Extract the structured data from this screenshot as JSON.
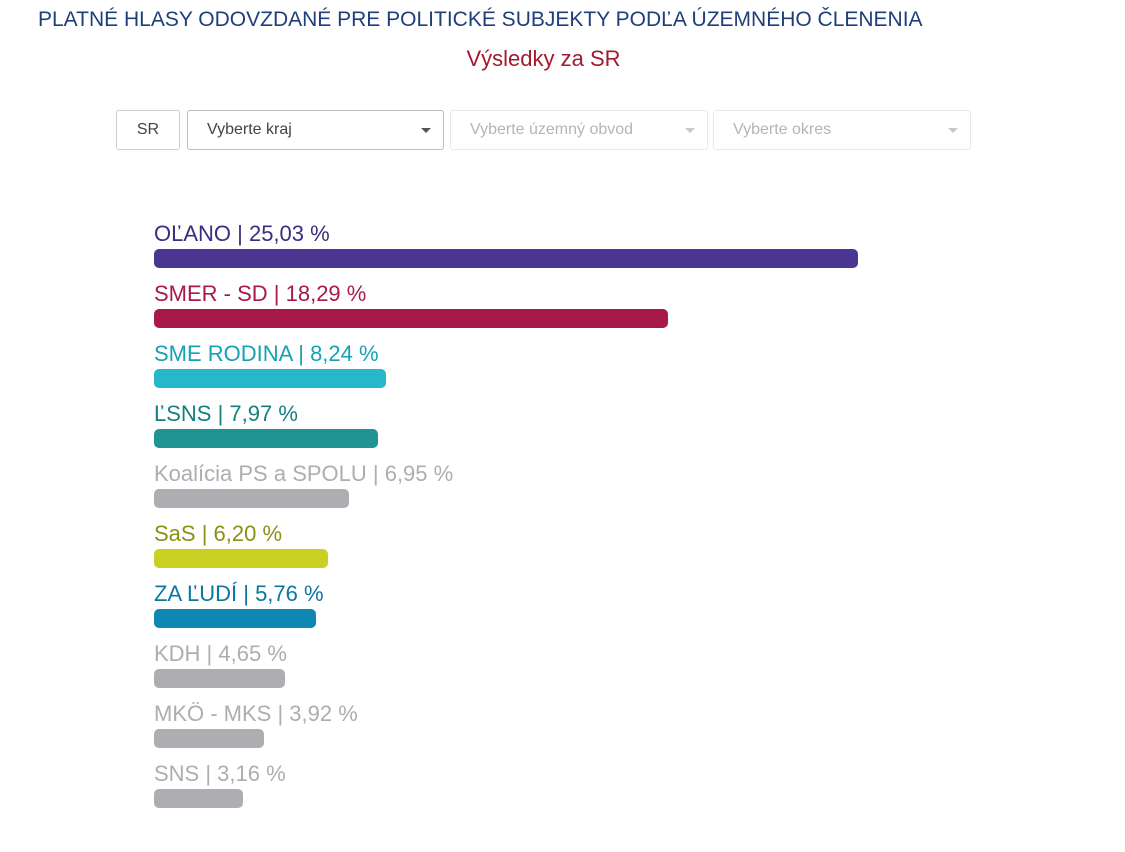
{
  "header": {
    "title": "PLATNÉ HLASY ODOVZDANÉ PRE POLITICKÉ SUBJEKTY PODĽA ÚZEMNÉHO ČLENENIA",
    "subtitle": "Výsledky za SR"
  },
  "filters": {
    "sr_label": "SR",
    "kraj": {
      "value": "Vyberte kraj",
      "enabled": true
    },
    "obvod": {
      "value": "Vyberte územný obvod",
      "enabled": false
    },
    "okres": {
      "value": "Vyberte okres",
      "enabled": false
    }
  },
  "chart_data": {
    "type": "bar",
    "orientation": "horizontal",
    "unit": "%",
    "categories": [
      "OĽANO",
      "SMER - SD",
      "SME RODINA",
      "ĽSNS",
      "Koalícia PS a SPOLU",
      "SaS",
      "ZA ĽUDÍ",
      "KDH",
      "MKÖ - MKS",
      "SNS"
    ],
    "values": [
      25.03,
      18.29,
      8.24,
      7.97,
      6.95,
      6.2,
      5.76,
      4.65,
      3.92,
      3.16
    ],
    "labels": [
      "OĽANO | 25,03 %",
      "SMER - SD | 18,29 %",
      "SME RODINA | 8,24 %",
      "ĽSNS | 7,97 %",
      "Koalícia PS a SPOLU | 6,95 %",
      "SaS | 6,20 %",
      "ZA ĽUDÍ | 5,76 %",
      "KDH | 4,65 %",
      "MKÖ - MKS | 3,92 %",
      "SNS | 3,16 %"
    ],
    "bar_colors": [
      "#4b3593",
      "#a8194a",
      "#26b8c8",
      "#1f9493",
      "#adadb2",
      "#c9d021",
      "#0e88b2",
      "#adadb2",
      "#adadb2",
      "#adadb2"
    ],
    "label_colors": [
      "#3b2d80",
      "#a8194a",
      "#14a2b4",
      "#157f80",
      "#adadb2",
      "#8b9015",
      "#0b77a0",
      "#adadb2",
      "#adadb2",
      "#adadb2"
    ]
  }
}
